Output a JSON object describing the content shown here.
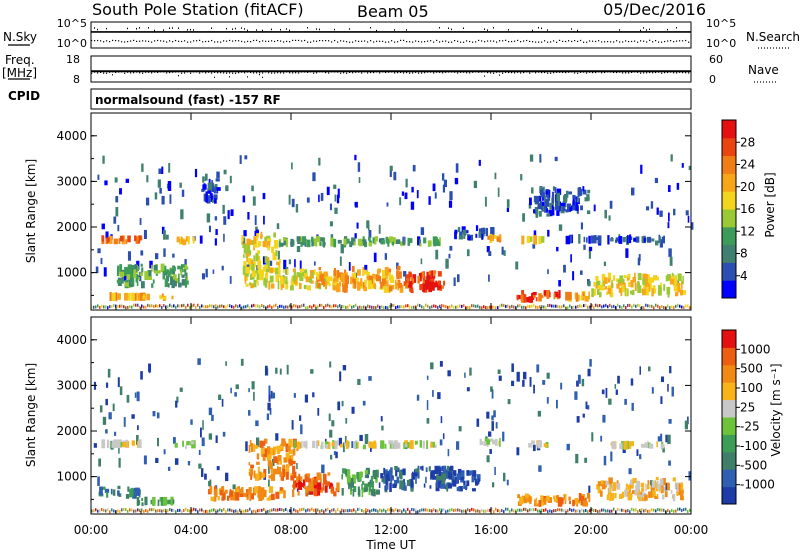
{
  "header": {
    "station": "South Pole Station (fitACF)",
    "beam": "Beam 05",
    "date": "05/Dec/2016",
    "nsky_label": "N.Sky",
    "nsearch_label": "N.Search",
    "freq_label": "Freq.",
    "freq_unit": "[MHz]",
    "nave_label": "Nave",
    "cpid_label": "CPID",
    "cpid_value": "normalsound (fast) -157 RF"
  },
  "chart_data": [
    {
      "type": "line",
      "name": "noise-strip",
      "y_ticks_left": [
        "10^5",
        "10^0"
      ],
      "y_ticks_right": [
        "10^5",
        "10^0"
      ],
      "nsky_log_level": 3.2,
      "nsearch_log_level": 1.2
    },
    {
      "type": "line",
      "name": "freq-nave-strip",
      "y_ticks_left": [
        "18",
        "8"
      ],
      "y_ticks_right": [
        "60",
        "0"
      ],
      "freq_level_mhz": 12,
      "nave_level": 22
    },
    {
      "type": "heatmap",
      "name": "power",
      "xlabel": "",
      "ylabel": "Slant Range [km]",
      "x_range_hours": [
        0,
        24
      ],
      "y_range_km": [
        180,
        4500
      ],
      "y_ticks": [
        1000,
        2000,
        3000,
        4000
      ],
      "colorbar": {
        "label": "Power [dB]",
        "ticks": [
          "4",
          "8",
          "12",
          "16",
          "20",
          "24",
          "28"
        ],
        "colors": [
          "#0000ff",
          "#2a4fb0",
          "#3f8070",
          "#3d9b5a",
          "#9ac936",
          "#f2d51c",
          "#f8a51a",
          "#f07d16",
          "#ea4510",
          "#e51010"
        ]
      },
      "features": [
        {
          "t0": 0.4,
          "t1": 2.1,
          "r0": 1620,
          "r1": 1820,
          "level": 7
        },
        {
          "t0": 3.3,
          "t1": 4.2,
          "r0": 1600,
          "r1": 1800,
          "level": 6
        },
        {
          "t0": 0.6,
          "t1": 3.4,
          "r0": 380,
          "r1": 560,
          "level": 6
        },
        {
          "t0": 1.0,
          "t1": 4.0,
          "r0": 650,
          "r1": 1200,
          "level": 3
        },
        {
          "t0": 4.4,
          "t1": 5.2,
          "r0": 2500,
          "r1": 3200,
          "level": 1
        },
        {
          "t0": 6.0,
          "t1": 7.6,
          "r0": 600,
          "r1": 1900,
          "level": 5
        },
        {
          "t0": 7.5,
          "t1": 10.0,
          "r0": 600,
          "r1": 1100,
          "level": 5
        },
        {
          "t0": 9.0,
          "t1": 12.5,
          "r0": 550,
          "r1": 1150,
          "level": 6
        },
        {
          "t0": 12.5,
          "t1": 14.2,
          "r0": 550,
          "r1": 1050,
          "level": 8
        },
        {
          "t0": 13.0,
          "t1": 14.0,
          "r0": 600,
          "r1": 850,
          "level": 9
        },
        {
          "t0": 7.5,
          "t1": 14.0,
          "r0": 1550,
          "r1": 1800,
          "level": 3
        },
        {
          "t0": 14.5,
          "t1": 16.2,
          "r0": 1700,
          "r1": 2050,
          "level": 1
        },
        {
          "t0": 15.8,
          "t1": 16.6,
          "r0": 1650,
          "r1": 1850,
          "level": 6
        },
        {
          "t0": 17.0,
          "t1": 18.8,
          "r0": 330,
          "r1": 620,
          "level": 8
        },
        {
          "t0": 18.8,
          "t1": 20.0,
          "r0": 350,
          "r1": 600,
          "level": 6
        },
        {
          "t0": 17.2,
          "t1": 18.2,
          "r0": 1650,
          "r1": 1800,
          "level": 5
        },
        {
          "t0": 18.8,
          "t1": 23.0,
          "r0": 1650,
          "r1": 1800,
          "level": 1
        },
        {
          "t0": 20.0,
          "t1": 23.8,
          "r0": 450,
          "r1": 1000,
          "level": 5
        },
        {
          "t0": 17.5,
          "t1": 20.0,
          "r0": 2200,
          "r1": 2900,
          "level": 1
        }
      ]
    },
    {
      "type": "heatmap",
      "name": "velocity",
      "xlabel": "Time UT",
      "ylabel": "Slant Range [km]",
      "x_range_hours": [
        0,
        24
      ],
      "y_range_km": [
        180,
        4500
      ],
      "x_ticks": [
        "00:00",
        "04:00",
        "08:00",
        "12:00",
        "16:00",
        "20:00",
        "00:00"
      ],
      "y_ticks": [
        1000,
        2000,
        3000,
        4000
      ],
      "colorbar": {
        "label": "Velocity [m s⁻¹]",
        "ticks": [
          "1000",
          "500",
          "100",
          "25",
          "-25",
          "-100",
          "-500",
          "-1000"
        ],
        "colors": [
          "#1e3ca8",
          "#2f5fb0",
          "#3f7f6a",
          "#3d9c55",
          "#6cc33a",
          "#c8c8c8",
          "#f8b21a",
          "#f08a14",
          "#ec5e10",
          "#e51010"
        ]
      },
      "features": [
        {
          "t0": 0.4,
          "t1": 2.1,
          "r0": 1620,
          "r1": 1820,
          "level": 5
        },
        {
          "t0": 3.3,
          "t1": 4.2,
          "r0": 1600,
          "r1": 1800,
          "level": 5
        },
        {
          "t0": 0.3,
          "t1": 2.0,
          "r0": 500,
          "r1": 800,
          "level": 2
        },
        {
          "t0": 1.8,
          "t1": 3.4,
          "r0": 350,
          "r1": 560,
          "level": 3
        },
        {
          "t0": 4.5,
          "t1": 7.8,
          "r0": 450,
          "r1": 800,
          "level": 7
        },
        {
          "t0": 6.3,
          "t1": 8.3,
          "r0": 900,
          "r1": 1850,
          "level": 7
        },
        {
          "t0": 8.0,
          "t1": 10.0,
          "r0": 550,
          "r1": 1100,
          "level": 8
        },
        {
          "t0": 10.0,
          "t1": 11.6,
          "r0": 550,
          "r1": 1200,
          "level": 3
        },
        {
          "t0": 11.5,
          "t1": 14.5,
          "r0": 650,
          "r1": 1250,
          "level": 1
        },
        {
          "t0": 14.2,
          "t1": 15.6,
          "r0": 650,
          "r1": 1150,
          "level": 0
        },
        {
          "t0": 8.0,
          "t1": 14.0,
          "r0": 1600,
          "r1": 1800,
          "level": 5
        },
        {
          "t0": 15.5,
          "t1": 16.6,
          "r0": 1650,
          "r1": 1850,
          "level": 5
        },
        {
          "t0": 17.0,
          "t1": 20.0,
          "r0": 330,
          "r1": 650,
          "level": 7
        },
        {
          "t0": 17.3,
          "t1": 18.3,
          "r0": 1620,
          "r1": 1800,
          "level": 5
        },
        {
          "t0": 20.2,
          "t1": 23.8,
          "r0": 450,
          "r1": 1000,
          "level": 6
        },
        {
          "t0": 20.5,
          "t1": 23.0,
          "r0": 1600,
          "r1": 1780,
          "level": 5
        }
      ]
    }
  ]
}
